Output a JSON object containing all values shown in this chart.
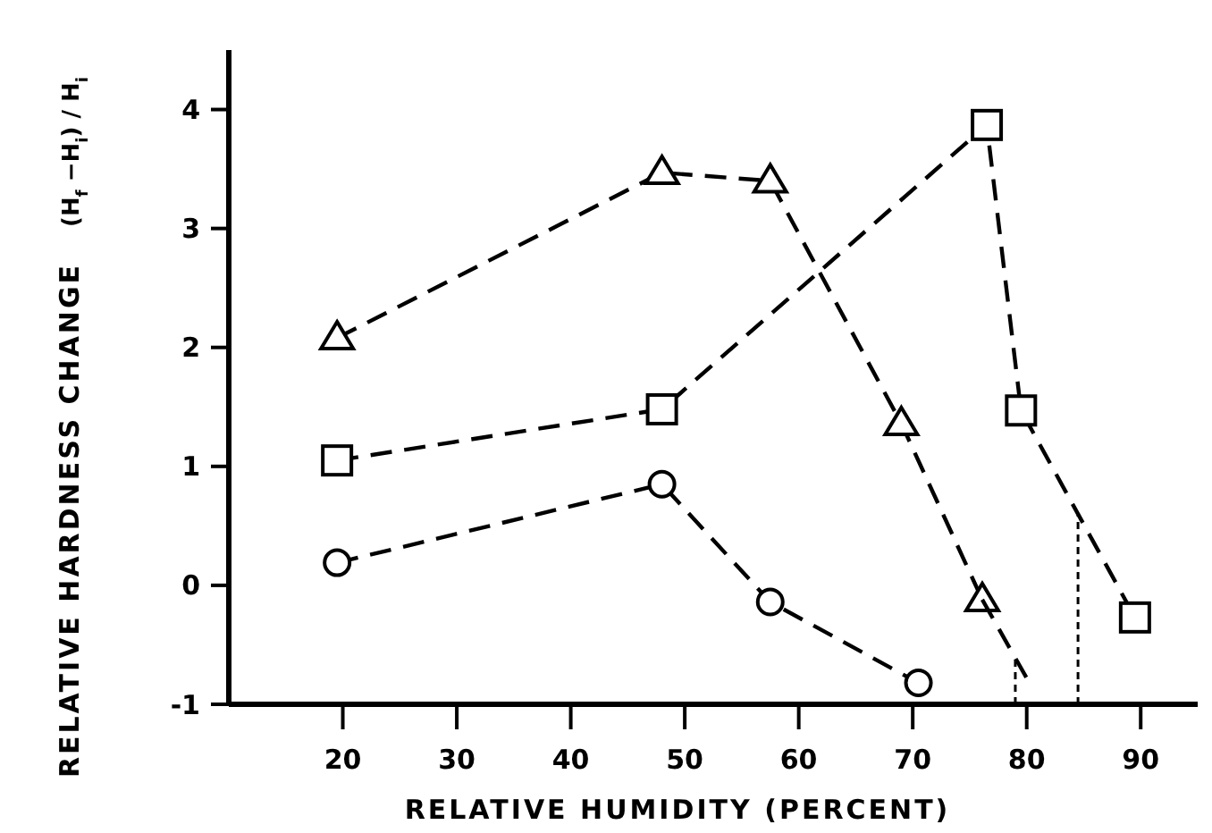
{
  "chart_data": {
    "type": "line",
    "xlabel": "RELATIVE HUMIDITY (PERCENT)",
    "ylabel": "RELATIVE HARDNESS CHANGE",
    "annotations": [
      "(H$_{f}$ −H$_{i}$) / H$_{i}$"
    ],
    "xlim": [
      10,
      95
    ],
    "xticks": [
      20,
      30,
      40,
      50,
      60,
      70,
      80,
      90
    ],
    "ylim": [
      -1,
      4.5
    ],
    "yticks": [
      -1,
      0,
      1,
      2,
      3,
      4
    ],
    "grid": false,
    "line_style": "dashed",
    "series": [
      {
        "color": "#000000",
        "marker": "triangle",
        "x": [
          19.5,
          48,
          57.5,
          69,
          76.1
        ],
        "values": [
          2.08,
          3.47,
          3.4,
          1.36,
          -0.12
        ]
      },
      {
        "color": "#000000",
        "marker": "none",
        "x": [
          76.1,
          80
        ],
        "values": [
          -0.12,
          -0.78
        ]
      },
      {
        "color": "#000000",
        "marker": "square",
        "x": [
          19.5,
          48,
          76.5,
          79.5,
          89.5
        ],
        "values": [
          1.05,
          1.48,
          3.87,
          1.47,
          -0.27
        ]
      },
      {
        "color": "#000000",
        "marker": "circle",
        "x": [
          19.5,
          48,
          57.5,
          70.5
        ],
        "values": [
          0.19,
          0.85,
          -0.14,
          -0.82
        ]
      },
      {
        "color": "#000000",
        "marker": "none",
        "line_style": "dotted",
        "x": [
          79,
          79
        ],
        "values": [
          -1,
          -0.6
        ]
      },
      {
        "color": "#000000",
        "marker": "none",
        "line_style": "dotted",
        "x": [
          84.5,
          84.5
        ],
        "values": [
          -1,
          0.6
        ]
      }
    ]
  }
}
